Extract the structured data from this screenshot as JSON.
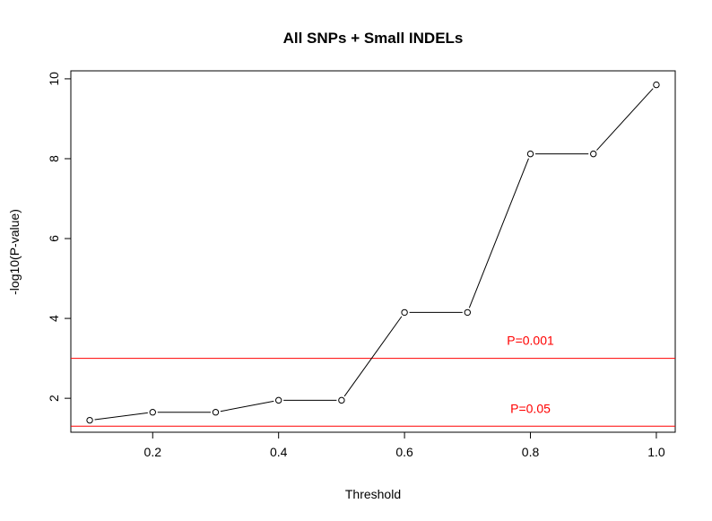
{
  "chart_data": {
    "type": "line",
    "title": "All SNPs + Small INDELs",
    "xlabel": "Threshold",
    "ylabel": "-log10(P-value)",
    "x": [
      0.1,
      0.2,
      0.3,
      0.4,
      0.5,
      0.6,
      0.7,
      0.8,
      0.9,
      1.0
    ],
    "series": [
      {
        "values": [
          1.45,
          1.65,
          1.65,
          1.95,
          1.95,
          4.15,
          4.15,
          8.12,
          8.12,
          9.85
        ]
      }
    ],
    "xlim": [
      0.07,
      1.03
    ],
    "ylim": [
      1.15,
      10.2
    ],
    "x_ticks": [
      0.2,
      0.4,
      0.6,
      0.8,
      1.0
    ],
    "x_tick_labels": [
      "0.2",
      "0.4",
      "0.6",
      "0.8",
      "1.0"
    ],
    "y_ticks": [
      2,
      4,
      6,
      8,
      10
    ],
    "y_tick_labels": [
      "2",
      "4",
      "6",
      "8",
      "10"
    ],
    "reference_lines": [
      {
        "label": "P=0.001",
        "y": 3.0,
        "label_x": 0.8
      },
      {
        "label": "P=0.05",
        "y": 1.30103,
        "label_x": 0.8
      }
    ],
    "colors": {
      "line": "#000000",
      "marker_fill": "#ffffff",
      "reference": "#ff0000",
      "box": "#000000"
    },
    "grid": false,
    "legend": "none"
  }
}
